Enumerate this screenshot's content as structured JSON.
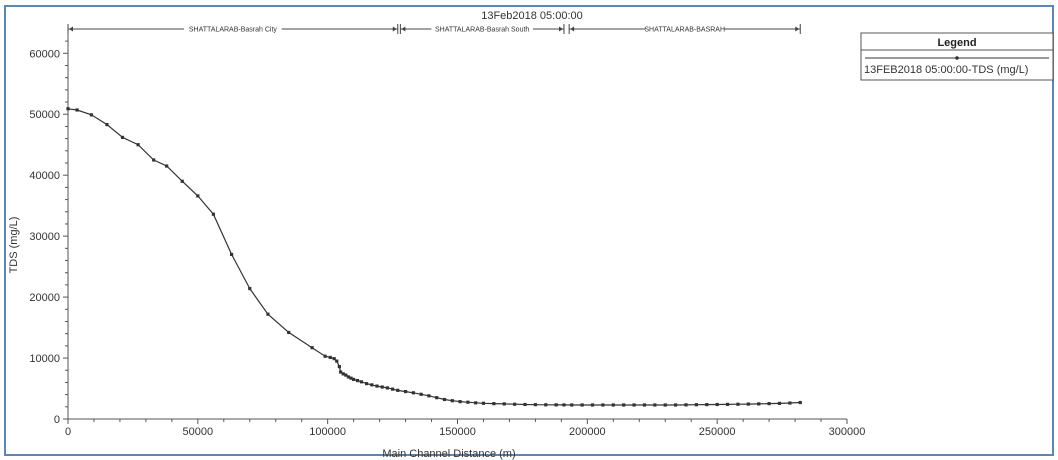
{
  "chart_data": {
    "type": "line",
    "title": "13Feb2018 05:00:00",
    "xlabel": "Main Channel Distance (m)",
    "ylabel": "TDS (mg/L)",
    "xlim": [
      0,
      300000
    ],
    "ylim": [
      0,
      63000
    ],
    "x_ticks": [
      0,
      50000,
      100000,
      150000,
      200000,
      250000,
      300000
    ],
    "y_ticks": [
      0,
      10000,
      20000,
      30000,
      40000,
      50000,
      60000
    ],
    "x_tick_labels": [
      "0",
      "50000",
      "100000",
      "150000",
      "200000",
      "250000",
      "300000"
    ],
    "y_tick_labels": [
      "0",
      "10000",
      "20000",
      "30000",
      "40000",
      "50000",
      "60000"
    ],
    "grid": false,
    "legend": {
      "position": "top-right",
      "title": "Legend",
      "entries": [
        "13FEB2018 05:00:00-TDS (mg/L)"
      ]
    },
    "reaches": [
      {
        "label": "SHATTALARAB-Basrah City",
        "start": 0,
        "end": 127000
      },
      {
        "label": "SHATTALARAB-Basrah South",
        "start": 128000,
        "end": 191000
      },
      {
        "label": "SHATTALARAB-BASRAH",
        "start": 193000,
        "end": 282000
      }
    ],
    "series": [
      {
        "name": "13FEB2018 05:00:00-TDS (mg/L)",
        "color": "#333333",
        "points": [
          [
            0,
            50900
          ],
          [
            3500,
            50700
          ],
          [
            9000,
            49900
          ],
          [
            15000,
            48300
          ],
          [
            21000,
            46200
          ],
          [
            27000,
            45000
          ],
          [
            33000,
            42500
          ],
          [
            38000,
            41500
          ],
          [
            44000,
            39000
          ],
          [
            50000,
            36600
          ],
          [
            56000,
            33600
          ],
          [
            63000,
            27000
          ],
          [
            70000,
            21400
          ],
          [
            77000,
            17200
          ],
          [
            85000,
            14200
          ],
          [
            94000,
            11700
          ],
          [
            99000,
            10300
          ],
          [
            101000,
            10100
          ],
          [
            102500,
            9900
          ],
          [
            103500,
            9500
          ],
          [
            104500,
            8600
          ],
          [
            105000,
            7700
          ],
          [
            106000,
            7400
          ],
          [
            107000,
            7200
          ],
          [
            108000,
            6900
          ],
          [
            109000,
            6700
          ],
          [
            110000,
            6500
          ],
          [
            111500,
            6300
          ],
          [
            113000,
            6100
          ],
          [
            115000,
            5800
          ],
          [
            117000,
            5600
          ],
          [
            119000,
            5400
          ],
          [
            121000,
            5250
          ],
          [
            123000,
            5100
          ],
          [
            125000,
            4900
          ],
          [
            127000,
            4700
          ],
          [
            130000,
            4500
          ],
          [
            133000,
            4300
          ],
          [
            136000,
            4050
          ],
          [
            139000,
            3800
          ],
          [
            142000,
            3500
          ],
          [
            145000,
            3200
          ],
          [
            148000,
            3000
          ],
          [
            151000,
            2850
          ],
          [
            154000,
            2750
          ],
          [
            157000,
            2650
          ],
          [
            160000,
            2580
          ],
          [
            164000,
            2520
          ],
          [
            168000,
            2480
          ],
          [
            172000,
            2420
          ],
          [
            176000,
            2380
          ],
          [
            180000,
            2350
          ],
          [
            184000,
            2330
          ],
          [
            188000,
            2320
          ],
          [
            191000,
            2310
          ],
          [
            194000,
            2300
          ],
          [
            198000,
            2300
          ],
          [
            202000,
            2300
          ],
          [
            206000,
            2300
          ],
          [
            210000,
            2300
          ],
          [
            214000,
            2300
          ],
          [
            218000,
            2300
          ],
          [
            222000,
            2300
          ],
          [
            226000,
            2300
          ],
          [
            230000,
            2300
          ],
          [
            234000,
            2300
          ],
          [
            238000,
            2320
          ],
          [
            242000,
            2340
          ],
          [
            246000,
            2360
          ],
          [
            250000,
            2380
          ],
          [
            254000,
            2400
          ],
          [
            258000,
            2420
          ],
          [
            262000,
            2450
          ],
          [
            266000,
            2480
          ],
          [
            270000,
            2520
          ],
          [
            274000,
            2560
          ],
          [
            278000,
            2620
          ],
          [
            282000,
            2700
          ]
        ]
      }
    ]
  }
}
